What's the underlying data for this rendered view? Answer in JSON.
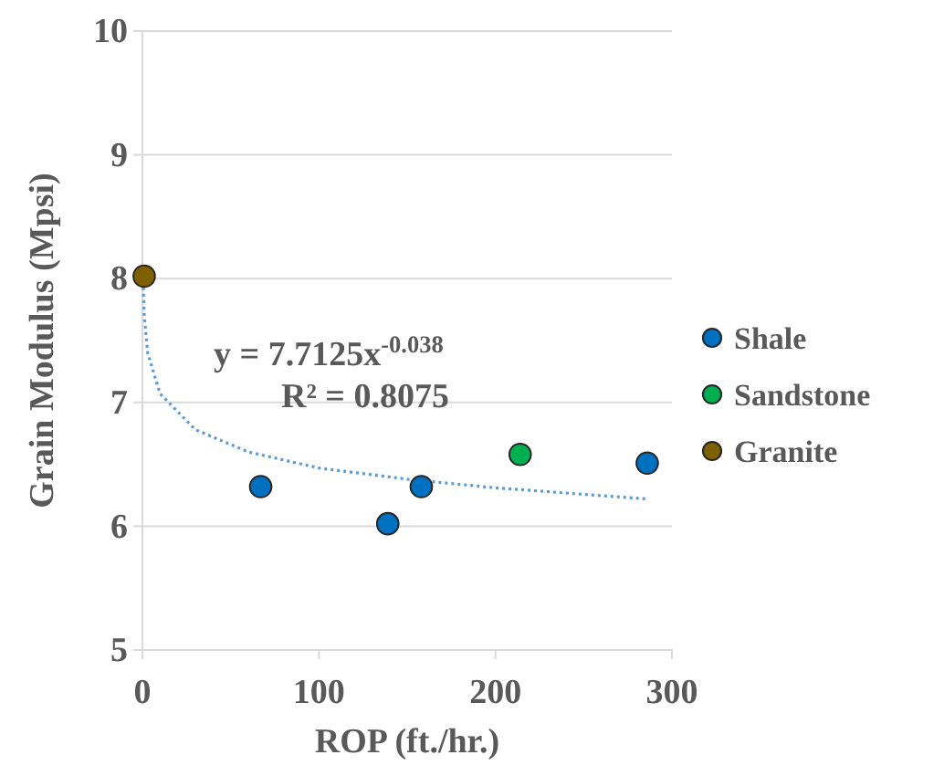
{
  "chart_data": {
    "type": "scatter",
    "xlabel": "ROP (ft./hr.)",
    "ylabel": "Grain Modulus (Mpsi)",
    "xlim": [
      0,
      300
    ],
    "xticks": [
      0,
      100,
      200,
      300
    ],
    "ylim": [
      5,
      10
    ],
    "yticks": [
      5,
      6,
      7,
      8,
      9,
      10
    ],
    "grid": "y",
    "legend": "right",
    "marker": "circle",
    "series": [
      {
        "name": "Shale",
        "color": "#0070c0",
        "x": [
          67,
          139,
          158,
          286
        ],
        "values": [
          6.32,
          6.02,
          6.32,
          6.51
        ]
      },
      {
        "name": "Sandstone",
        "color": "#00b050",
        "x": [
          214
        ],
        "values": [
          6.58
        ]
      },
      {
        "name": "Granite",
        "color": "#7f6000",
        "x": [
          1
        ],
        "values": [
          8.02
        ]
      },
      {
        "type": "line",
        "color": "#5b9bd5",
        "line_style": "dotted",
        "marker": "none",
        "x": [
          0.4,
          1,
          3,
          10,
          30,
          60,
          100,
          150,
          200,
          286
        ],
        "values": [
          7.98,
          7.71,
          7.4,
          7.07,
          6.78,
          6.6,
          6.47,
          6.38,
          6.31,
          6.22
        ]
      }
    ],
    "annotations": [
      "y = 7.7125x$^{-0.038}$",
      "R² = 0.8075"
    ]
  }
}
